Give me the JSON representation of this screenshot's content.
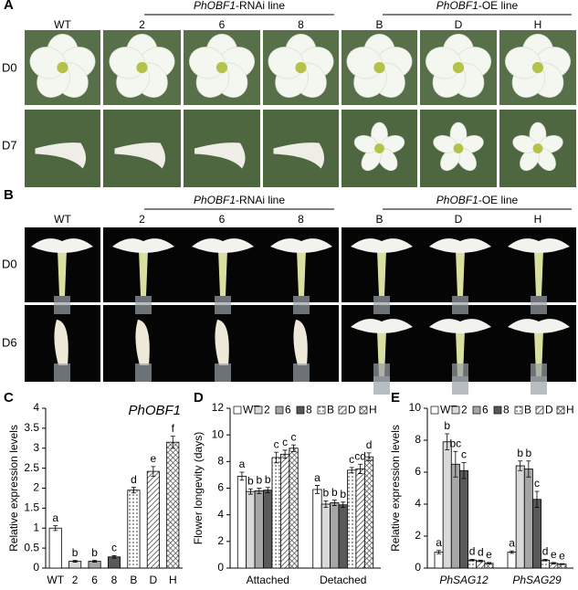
{
  "panel_a": {
    "label": "A",
    "columns": [
      "WT",
      "2",
      "6",
      "8",
      "B",
      "D",
      "H"
    ],
    "rnai": {
      "gene": "PhOBF1",
      "suffix": "-RNAi line"
    },
    "oe": {
      "gene": "PhOBF1",
      "suffix": "-OE line"
    },
    "rows": [
      "D0",
      "D7"
    ]
  },
  "panel_b": {
    "label": "B",
    "columns": [
      "WT",
      "2",
      "6",
      "8",
      "B",
      "D",
      "H"
    ],
    "rnai": {
      "gene": "PhOBF1",
      "suffix": "-RNAi line"
    },
    "oe": {
      "gene": "PhOBF1",
      "suffix": "-OE line"
    },
    "rows": [
      "D0",
      "D6"
    ]
  },
  "chart_data": [
    {
      "type": "bar",
      "panel_label": "C",
      "title": "PhOBF1",
      "y_label": "Relative expression levels",
      "categories": [
        "WT",
        "2",
        "6",
        "8",
        "B",
        "D",
        "H"
      ],
      "values": [
        1.0,
        0.17,
        0.17,
        0.28,
        1.95,
        2.42,
        3.15
      ],
      "errors": [
        0.06,
        0.02,
        0.02,
        0.03,
        0.07,
        0.12,
        0.15
      ],
      "letters": [
        "a",
        "b",
        "b",
        "c",
        "d",
        "e",
        "f"
      ],
      "colors": [
        "#ffffff",
        "#d9d9d9",
        "#a6a6a6",
        "#595959",
        "#ffffff",
        "#ffffff",
        "#ffffff"
      ],
      "patterns": [
        "solid",
        "solid",
        "solid",
        "solid",
        "dots",
        "stripes",
        "crosshatch"
      ],
      "ylim": [
        0,
        4
      ],
      "yticks": [
        0,
        0.5,
        1,
        1.5,
        2,
        2.5,
        3,
        3.5,
        4
      ]
    },
    {
      "type": "grouped_bar",
      "panel_label": "D",
      "y_label": "Flower longevity (days)",
      "categories": [
        "Attached",
        "Detached"
      ],
      "legend": true,
      "series": [
        {
          "name": "WT",
          "color": "#ffffff",
          "pattern": "solid",
          "values": [
            6.9,
            5.9
          ],
          "errors": [
            0.3,
            0.3
          ],
          "letters": [
            "a",
            "a"
          ]
        },
        {
          "name": "2",
          "color": "#d9d9d9",
          "pattern": "solid",
          "values": [
            5.75,
            4.8
          ],
          "errors": [
            0.2,
            0.25
          ],
          "letters": [
            "b",
            "b"
          ]
        },
        {
          "name": "6",
          "color": "#a6a6a6",
          "pattern": "solid",
          "values": [
            5.8,
            4.9
          ],
          "errors": [
            0.2,
            0.2
          ],
          "letters": [
            "b",
            "b"
          ]
        },
        {
          "name": "8",
          "color": "#595959",
          "pattern": "solid",
          "values": [
            5.85,
            4.75
          ],
          "errors": [
            0.2,
            0.2
          ],
          "letters": [
            "b",
            "b"
          ]
        },
        {
          "name": "B",
          "color": "#ffffff",
          "pattern": "dots",
          "values": [
            8.3,
            7.35
          ],
          "errors": [
            0.4,
            0.2
          ],
          "letters": [
            "c",
            "c"
          ]
        },
        {
          "name": "D",
          "color": "#ffffff",
          "pattern": "stripes",
          "values": [
            8.55,
            7.45
          ],
          "errors": [
            0.3,
            0.35
          ],
          "letters": [
            "c",
            "cd"
          ]
        },
        {
          "name": "H",
          "color": "#ffffff",
          "pattern": "crosshatch",
          "values": [
            9.0,
            8.35
          ],
          "errors": [
            0.25,
            0.3
          ],
          "letters": [
            "c",
            "d"
          ]
        }
      ],
      "ylim": [
        0,
        12
      ],
      "yticks": [
        0,
        2,
        4,
        6,
        8,
        10,
        12
      ]
    },
    {
      "type": "grouped_bar",
      "panel_label": "E",
      "y_label": "Relative expression levels",
      "categories": [
        "PhSAG12",
        "PhSAG29"
      ],
      "legend": true,
      "series": [
        {
          "name": "WT",
          "color": "#ffffff",
          "pattern": "solid",
          "values": [
            1.0,
            1.0
          ],
          "errors": [
            0.1,
            0.08
          ],
          "letters": [
            "a",
            "a"
          ]
        },
        {
          "name": "2",
          "color": "#d9d9d9",
          "pattern": "solid",
          "values": [
            7.9,
            6.4
          ],
          "errors": [
            0.5,
            0.3
          ],
          "letters": [
            "b",
            "b"
          ]
        },
        {
          "name": "6",
          "color": "#a6a6a6",
          "pattern": "solid",
          "values": [
            6.5,
            6.2
          ],
          "errors": [
            0.8,
            0.5
          ],
          "letters": [
            "bc",
            "b"
          ]
        },
        {
          "name": "8",
          "color": "#595959",
          "pattern": "solid",
          "values": [
            6.1,
            4.3
          ],
          "errors": [
            0.5,
            0.5
          ],
          "letters": [
            "c",
            "c"
          ]
        },
        {
          "name": "B",
          "color": "#ffffff",
          "pattern": "dots",
          "values": [
            0.5,
            0.5
          ],
          "errors": [
            0.05,
            0.05
          ],
          "letters": [
            "d",
            "d"
          ]
        },
        {
          "name": "D",
          "color": "#ffffff",
          "pattern": "stripes",
          "values": [
            0.45,
            0.3
          ],
          "errors": [
            0.05,
            0.05
          ],
          "letters": [
            "d",
            "e"
          ]
        },
        {
          "name": "H",
          "color": "#ffffff",
          "pattern": "crosshatch",
          "values": [
            0.3,
            0.25
          ],
          "errors": [
            0.05,
            0.03
          ],
          "letters": [
            "e",
            "e"
          ]
        }
      ],
      "ylim": [
        0,
        10
      ],
      "yticks": [
        0,
        2,
        4,
        6,
        8,
        10
      ]
    }
  ]
}
